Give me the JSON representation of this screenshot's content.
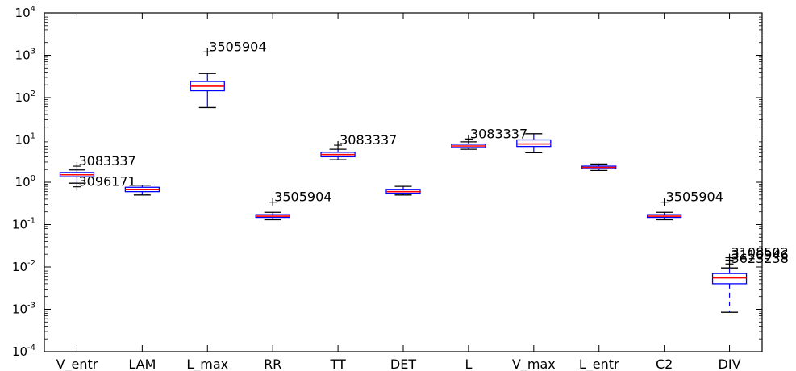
{
  "chart_data": {
    "type": "boxplot",
    "title": "",
    "xlabel": "",
    "ylabel": "",
    "yscale": "log",
    "ylim": [
      0.0001,
      10000
    ],
    "yticks": [
      {
        "base": "10",
        "exp": "4"
      },
      {
        "base": "10",
        "exp": "3"
      },
      {
        "base": "10",
        "exp": "2"
      },
      {
        "base": "10",
        "exp": "1"
      },
      {
        "base": "10",
        "exp": "0"
      },
      {
        "base": "10",
        "exp": "-1"
      },
      {
        "base": "10",
        "exp": "-2"
      },
      {
        "base": "10",
        "exp": "-3"
      },
      {
        "base": "10",
        "exp": "-4"
      }
    ],
    "grid": false,
    "colors": {
      "box": "#0000ff",
      "median": "#ff0000",
      "whisker": "#000000",
      "frame": "#000000"
    },
    "categories": [
      "V_entr",
      "LAM",
      "L_max",
      "RR",
      "TT",
      "DET",
      "L",
      "V_max",
      "L_entr",
      "C2",
      "DIV"
    ],
    "boxes": [
      {
        "name": "V_entr",
        "whislo": 0.95,
        "q1": 1.35,
        "med": 1.5,
        "q3": 1.7,
        "whishi": 1.95,
        "dashed_whiskers": false,
        "fliers": [
          {
            "value": 2.4,
            "label": "3083337"
          },
          {
            "value": 0.78,
            "label": "3096171"
          }
        ]
      },
      {
        "name": "LAM",
        "whislo": 0.5,
        "q1": 0.6,
        "med": 0.68,
        "q3": 0.76,
        "whishi": 0.85,
        "dashed_whiskers": false,
        "fliers": []
      },
      {
        "name": "L_max",
        "whislo": 58,
        "q1": 145,
        "med": 185,
        "q3": 240,
        "whishi": 370,
        "dashed_whiskers": false,
        "fliers": [
          {
            "value": 1200,
            "label": "3505904"
          }
        ]
      },
      {
        "name": "RR",
        "whislo": 0.13,
        "q1": 0.148,
        "med": 0.158,
        "q3": 0.172,
        "whishi": 0.195,
        "dashed_whiskers": false,
        "fliers": [
          {
            "value": 0.34,
            "label": "3505904"
          }
        ]
      },
      {
        "name": "TT",
        "whislo": 3.4,
        "q1": 4.0,
        "med": 4.5,
        "q3": 5.1,
        "whishi": 6.0,
        "dashed_whiskers": false,
        "fliers": [
          {
            "value": 7.5,
            "label": "3083337"
          }
        ]
      },
      {
        "name": "DET",
        "whislo": 0.5,
        "q1": 0.55,
        "med": 0.6,
        "q3": 0.68,
        "whishi": 0.8,
        "dashed_whiskers": false,
        "fliers": []
      },
      {
        "name": "L",
        "whislo": 6.0,
        "q1": 6.6,
        "med": 7.2,
        "q3": 7.9,
        "whishi": 9.0,
        "dashed_whiskers": false,
        "fliers": [
          {
            "value": 10.5,
            "label": "3083337"
          }
        ]
      },
      {
        "name": "V_max",
        "whislo": 5.0,
        "q1": 7.0,
        "med": 8.0,
        "q3": 10.0,
        "whishi": 14.0,
        "dashed_whiskers": false,
        "fliers": []
      },
      {
        "name": "L_entr",
        "whislo": 1.9,
        "q1": 2.1,
        "med": 2.25,
        "q3": 2.4,
        "whishi": 2.7,
        "dashed_whiskers": false,
        "fliers": []
      },
      {
        "name": "C2",
        "whislo": 0.13,
        "q1": 0.148,
        "med": 0.158,
        "q3": 0.172,
        "whishi": 0.195,
        "dashed_whiskers": false,
        "fliers": [
          {
            "value": 0.34,
            "label": "3505904"
          }
        ]
      },
      {
        "name": "DIV",
        "whislo": 0.00085,
        "q1": 0.004,
        "med": 0.0055,
        "q3": 0.007,
        "whishi": 0.0095,
        "dashed_whiskers": true,
        "fliers": [
          {
            "value": 0.0165,
            "label": "3108502"
          },
          {
            "value": 0.0145,
            "label": "3110946"
          },
          {
            "value": 0.0118,
            "label": "3623238"
          }
        ]
      }
    ]
  }
}
